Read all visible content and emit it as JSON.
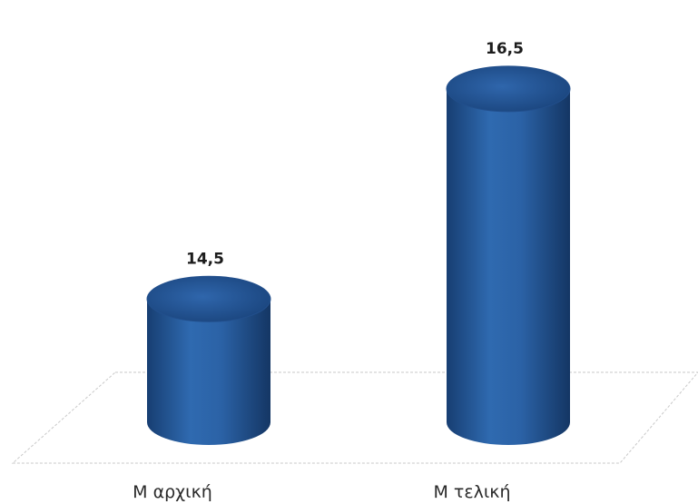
{
  "chart_data": {
    "type": "bar",
    "style": "3d-cylinder",
    "categories": [
      "Μ αρχική",
      "Μ τελική"
    ],
    "values": [
      14.5,
      16.5
    ],
    "data_labels": [
      "14,5",
      "16,5"
    ],
    "series_color": "#2a5fa3",
    "title": "",
    "xlabel": "",
    "ylabel": "",
    "ylim": [
      13.5,
      17
    ],
    "grid": false,
    "legend": "none"
  }
}
